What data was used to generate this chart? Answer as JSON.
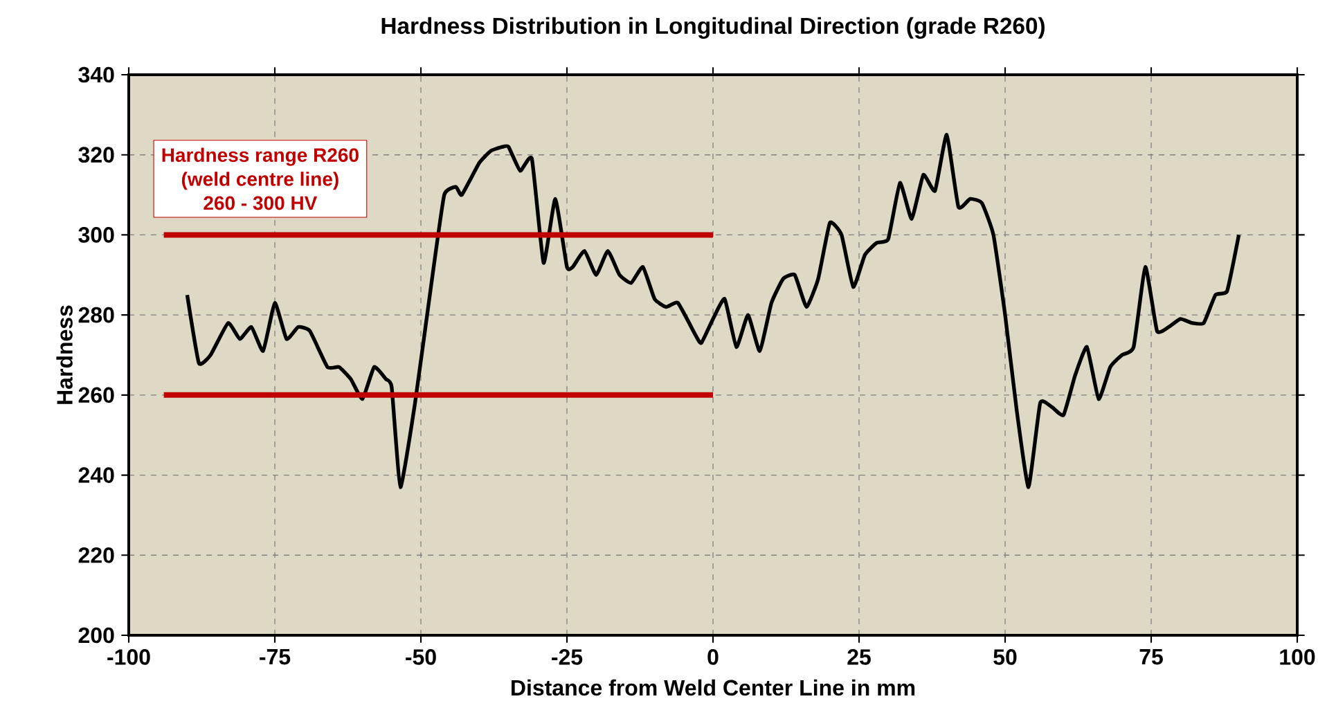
{
  "chart_data": {
    "type": "line",
    "title": "Hardness Distribution in Longitudinal Direction (grade R260)",
    "xlabel": "Distance from Weld Center Line in mm",
    "ylabel": "Hardness",
    "xlim": [
      -100,
      100
    ],
    "xticks": [
      -100,
      -75,
      -50,
      -25,
      0,
      25,
      50,
      75,
      100
    ],
    "ylim": [
      200,
      340
    ],
    "yticks": [
      200,
      220,
      240,
      260,
      280,
      300,
      320,
      340
    ],
    "grid": true,
    "series": [
      {
        "color": "#000000",
        "x": [
          -90,
          -88,
          -86,
          -83,
          -81,
          -79,
          -77,
          -75,
          -73,
          -71,
          -69,
          -66,
          -64,
          -62,
          -60,
          -58,
          -56,
          -55,
          -53.5,
          -51,
          -48,
          -46,
          -44,
          -43,
          -40,
          -38,
          -36,
          -35,
          -33,
          -31,
          -29,
          -27,
          -25,
          -24,
          -22,
          -20,
          -18,
          -16,
          -14,
          -12,
          -10,
          -8,
          -6,
          -3,
          -2,
          0,
          2,
          4,
          6,
          8,
          10,
          12,
          14,
          16,
          18,
          20,
          22,
          24,
          26,
          28,
          30,
          32,
          34,
          36,
          38,
          40,
          42,
          44,
          46,
          48,
          50,
          52,
          54,
          56,
          58,
          60,
          62,
          64,
          66,
          68,
          70,
          72,
          74,
          76,
          78,
          80,
          82,
          84,
          86,
          88,
          90
        ],
        "values": [
          285,
          268,
          270,
          278,
          274,
          277,
          271,
          283,
          274,
          277,
          276,
          267,
          267,
          264,
          259,
          267,
          264,
          262,
          237,
          258,
          290,
          310,
          312,
          310,
          318,
          321,
          322,
          322,
          316,
          319,
          293,
          309,
          292,
          292,
          296,
          290,
          296,
          290,
          288,
          292,
          284,
          282,
          283,
          275,
          273,
          279,
          284,
          272,
          280,
          271,
          283,
          289,
          290,
          282,
          289,
          303,
          300,
          287,
          295,
          298,
          299,
          313,
          304,
          315,
          311,
          325,
          307,
          309,
          308,
          300,
          280,
          256,
          237,
          258,
          257,
          255,
          265,
          272,
          259,
          267,
          270,
          272,
          292,
          276,
          277,
          279,
          278,
          278,
          285,
          286,
          300
        ]
      },
      {
        "color": "#c00000",
        "x": [
          -94,
          0
        ],
        "values": [
          300,
          300
        ]
      },
      {
        "color": "#c00000",
        "x": [
          -94,
          0
        ],
        "values": [
          260,
          260
        ]
      }
    ],
    "annotations": [
      "Hardness range R260",
      "(weld centre line)",
      "260 - 300 HV"
    ]
  }
}
